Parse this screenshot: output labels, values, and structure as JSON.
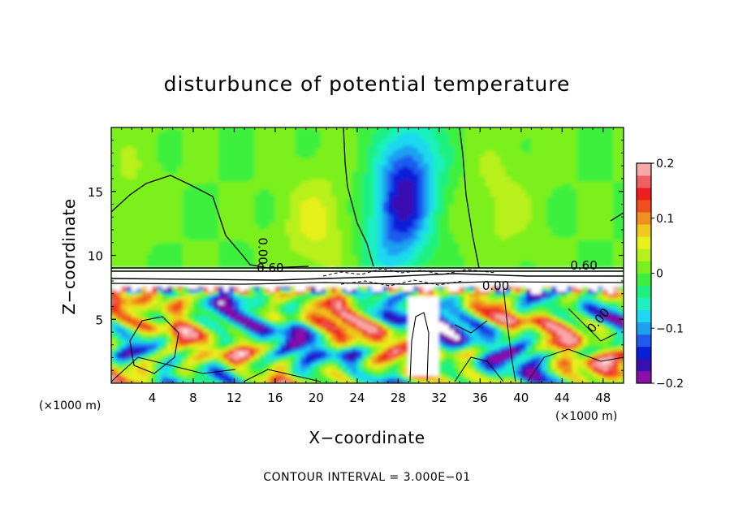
{
  "chart_data": {
    "type": "heatmap",
    "title": "disturbunce of potential temperature",
    "xlabel": "X−coordinate",
    "ylabel": "Z−coordinate",
    "x_unit_left": "(×1000 m)",
    "x_unit_right": "(×1000 m)",
    "xlim": [
      0,
      50
    ],
    "ylim": [
      0,
      20
    ],
    "x_ticks": [
      4,
      8,
      12,
      16,
      20,
      24,
      28,
      32,
      36,
      40,
      44,
      48
    ],
    "x_tick_labels": [
      "4",
      "8",
      "12",
      "16",
      "20",
      "24",
      "28",
      "32",
      "36",
      "40",
      "44",
      "48"
    ],
    "y_ticks": [
      5,
      10,
      15
    ],
    "y_tick_labels": [
      "5",
      "10",
      "15"
    ],
    "colorbar": {
      "min": -0.2,
      "max": 0.2,
      "tick_values": [
        0.2,
        0.1,
        0,
        -0.1,
        -0.2
      ],
      "tick_labels": [
        "0.2",
        "0.1",
        "0",
        "−0.1",
        "−0.2"
      ],
      "colors": [
        "#8a0ea8",
        "#3a0fb0",
        "#0a1ed8",
        "#1e5cf0",
        "#1ea0f0",
        "#1ed8f0",
        "#1ef0c0",
        "#1ef080",
        "#3ef03e",
        "#7cf01e",
        "#b8f01e",
        "#e8f01e",
        "#f0c81e",
        "#f0901e",
        "#f0501e",
        "#f01e1e",
        "#f06060",
        "#f8a8a8"
      ]
    },
    "contour_labels": [
      {
        "text": "0.60",
        "x": 14.2,
        "y": 8.7
      },
      {
        "text": "0.60",
        "x": 44.8,
        "y": 8.9
      },
      {
        "text": "0.00",
        "x": 36.2,
        "y": 7.3
      },
      {
        "text": "0.00",
        "x": 14.4,
        "y": 11.4
      },
      {
        "text": "0.00",
        "x": 47.0,
        "y": 3.9
      }
    ],
    "contour_interval_text": "CONTOUR INTERVAL =   3.000E−01"
  }
}
